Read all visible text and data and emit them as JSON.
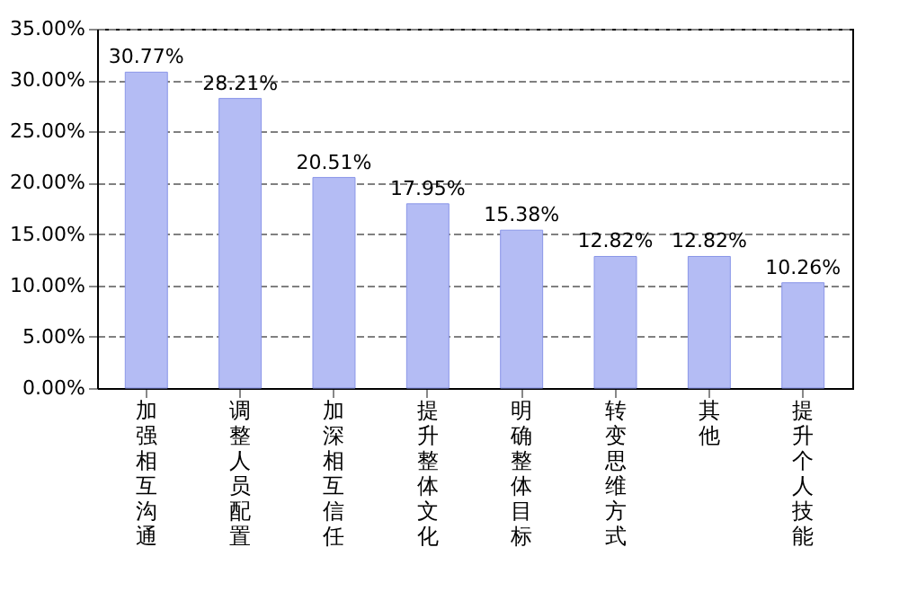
{
  "chart_data": {
    "type": "bar",
    "categories": [
      "加强相互沟通",
      "调整人员配置",
      "加深相互信任",
      "提升整体文化",
      "明确整体目标",
      "转变思维方式",
      "其他",
      "提升个人技能"
    ],
    "values": [
      30.77,
      28.21,
      20.51,
      17.95,
      15.38,
      12.82,
      12.82,
      10.26
    ],
    "value_labels": [
      "30.77%",
      "28.21%",
      "20.51%",
      "17.95%",
      "15.38%",
      "12.82%",
      "12.82%",
      "10.26%"
    ],
    "color": "#b4bcf4",
    "ylim": [
      0,
      35
    ],
    "yticks": [
      {
        "value": 0,
        "label": "0.00%"
      },
      {
        "value": 5,
        "label": "5.00%"
      },
      {
        "value": 10,
        "label": "10.00%"
      },
      {
        "value": 15,
        "label": "15.00%"
      },
      {
        "value": 20,
        "label": "20.00%"
      },
      {
        "value": 25,
        "label": "25.00%"
      },
      {
        "value": 30,
        "label": "30.00%"
      },
      {
        "value": 35,
        "label": "35.00%"
      }
    ],
    "grid": "y"
  }
}
